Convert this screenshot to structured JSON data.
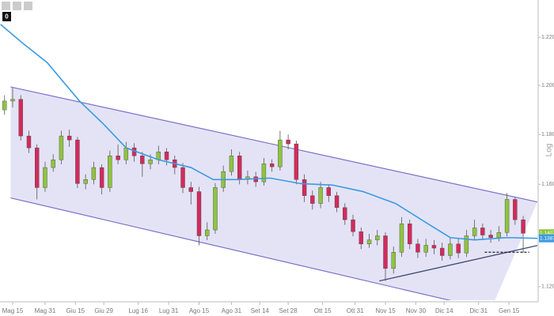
{
  "toolbar": {
    "badge": "0"
  },
  "chart_data": {
    "type": "candlestick",
    "y_axis_label": "Log",
    "log_scale": true,
    "xlim": [
      -6.25,
      259.4
    ],
    "ylim": [
      1.1148,
      1.2357
    ],
    "xticks": [
      {
        "value": 0,
        "label": "Mag 15"
      },
      {
        "value": 16,
        "label": "Mag 31"
      },
      {
        "value": 31,
        "label": "Giu 15"
      },
      {
        "value": 45,
        "label": "Giu 29"
      },
      {
        "value": 62,
        "label": "Lug 16"
      },
      {
        "value": 77,
        "label": "Lug 31"
      },
      {
        "value": 92,
        "label": "Ago 15"
      },
      {
        "value": 108,
        "label": "Ago 31"
      },
      {
        "value": 122,
        "label": "Set 14"
      },
      {
        "value": 136,
        "label": "Set 28"
      },
      {
        "value": 153,
        "label": "Ott 15"
      },
      {
        "value": 169,
        "label": "Ott 31"
      },
      {
        "value": 184,
        "label": "Nov 15"
      },
      {
        "value": 199,
        "label": "Nov 30"
      },
      {
        "value": 213,
        "label": "Dic 14"
      },
      {
        "value": 230,
        "label": "Dic 31"
      },
      {
        "value": 245,
        "label": "Gen 15"
      }
    ],
    "yticks": [
      {
        "value": 1.12,
        "label": "1.1200"
      },
      {
        "value": 1.14,
        "label": "1.1400"
      },
      {
        "value": 1.16,
        "label": "1.1600"
      },
      {
        "value": 1.18,
        "label": "1.1800"
      },
      {
        "value": 1.2,
        "label": "1.2000"
      },
      {
        "value": 1.22,
        "label": "1.2200"
      }
    ],
    "up_color": "#8fc43f",
    "down_color": "#d42a5c",
    "x": [
      -4,
      0,
      4,
      8,
      12,
      16,
      20,
      24,
      28,
      32,
      36,
      40,
      44,
      48,
      52,
      56,
      60,
      64,
      68,
      72,
      76,
      80,
      84,
      88,
      92,
      96,
      100,
      104,
      108,
      112,
      116,
      120,
      124,
      128,
      132,
      136,
      140,
      144,
      148,
      152,
      156,
      160,
      164,
      168,
      172,
      176,
      180,
      184,
      188,
      192,
      196,
      200,
      204,
      208,
      212,
      216,
      220,
      224,
      228,
      232,
      236,
      240,
      244,
      248,
      252
    ],
    "open": [
      1.19,
      1.1936,
      1.1943,
      1.1794,
      1.1746,
      1.1587,
      1.1667,
      1.1698,
      1.1794,
      1.1778,
      1.1603,
      1.1619,
      1.1667,
      1.1587,
      1.1714,
      1.1698,
      1.1746,
      1.1714,
      1.1682,
      1.1698,
      1.173,
      1.1698,
      1.1667,
      1.1587,
      1.1571,
      1.1397,
      1.142,
      1.1587,
      1.1651,
      1.1714,
      1.1619,
      1.163,
      1.161,
      1.1682,
      1.167,
      1.1778,
      1.1762,
      1.1619,
      1.1555,
      1.1524,
      1.1587,
      1.1555,
      1.1508,
      1.146,
      1.1413,
      1.1365,
      1.1381,
      1.1397,
      1.127,
      1.1333,
      1.1444,
      1.1365,
      1.1333,
      1.136,
      1.1349,
      1.132,
      1.1365,
      1.133,
      1.1397,
      1.1428,
      1.14,
      1.139,
      1.141,
      1.154,
      1.146
    ],
    "high": [
      1.196,
      1.199,
      1.196,
      1.1815,
      1.176,
      1.169,
      1.172,
      1.1815,
      1.182,
      1.179,
      1.164,
      1.169,
      1.168,
      1.1735,
      1.176,
      1.177,
      1.1765,
      1.173,
      1.172,
      1.1755,
      1.1745,
      1.1715,
      1.1685,
      1.161,
      1.159,
      1.145,
      1.1605,
      1.1675,
      1.174,
      1.173,
      1.1655,
      1.165,
      1.1705,
      1.17,
      1.1815,
      1.18,
      1.1775,
      1.164,
      1.1575,
      1.161,
      1.16,
      1.157,
      1.1525,
      1.148,
      1.143,
      1.1405,
      1.142,
      1.141,
      1.1355,
      1.147,
      1.146,
      1.1385,
      1.1385,
      1.138,
      1.137,
      1.139,
      1.1385,
      1.142,
      1.146,
      1.1445,
      1.142,
      1.1435,
      1.1565,
      1.155,
      1.1475
    ],
    "low": [
      1.188,
      1.191,
      1.1775,
      1.1725,
      1.154,
      1.157,
      1.165,
      1.168,
      1.175,
      1.1585,
      1.158,
      1.16,
      1.156,
      1.157,
      1.168,
      1.168,
      1.169,
      1.163,
      1.166,
      1.168,
      1.1675,
      1.164,
      1.1565,
      1.152,
      1.136,
      1.138,
      1.1405,
      1.157,
      1.1635,
      1.16,
      1.16,
      1.159,
      1.1595,
      1.165,
      1.1655,
      1.174,
      1.16,
      1.153,
      1.15,
      1.1505,
      1.153,
      1.149,
      1.144,
      1.1395,
      1.1345,
      1.135,
      1.136,
      1.1222,
      1.125,
      1.1315,
      1.1345,
      1.131,
      1.1315,
      1.1325,
      1.13,
      1.1305,
      1.131,
      1.1315,
      1.138,
      1.138,
      1.137,
      1.1375,
      1.1395,
      1.144,
      1.133
    ],
    "close": [
      1.1936,
      1.1943,
      1.1794,
      1.1746,
      1.1587,
      1.1667,
      1.1698,
      1.1794,
      1.1778,
      1.1603,
      1.1619,
      1.1667,
      1.1587,
      1.1714,
      1.1698,
      1.1746,
      1.1714,
      1.1682,
      1.1698,
      1.173,
      1.1698,
      1.1667,
      1.1587,
      1.1571,
      1.1397,
      1.142,
      1.1587,
      1.1651,
      1.1714,
      1.1619,
      1.163,
      1.161,
      1.1682,
      1.167,
      1.1778,
      1.1762,
      1.1619,
      1.1555,
      1.1524,
      1.1587,
      1.1555,
      1.1508,
      1.146,
      1.1413,
      1.1365,
      1.1381,
      1.1397,
      1.127,
      1.1333,
      1.1444,
      1.1365,
      1.1333,
      1.136,
      1.1349,
      1.132,
      1.1365,
      1.133,
      1.1397,
      1.1428,
      1.14,
      1.139,
      1.141,
      1.154,
      1.146,
      1.1407
    ],
    "moving_average": {
      "color": "#3a9be0",
      "x": [
        -6,
        5,
        17,
        33,
        45,
        56,
        72,
        88,
        99,
        111,
        127,
        142,
        158,
        173,
        189,
        205,
        216,
        228,
        244,
        259
      ],
      "values": [
        1.2254,
        1.2175,
        1.2095,
        1.1936,
        1.1841,
        1.1746,
        1.1698,
        1.1667,
        1.1619,
        1.1619,
        1.1625,
        1.1603,
        1.1597,
        1.1571,
        1.1524,
        1.1444,
        1.139,
        1.1381,
        1.139,
        1.1387
      ]
    },
    "channel": {
      "color": "#7a72c8",
      "fill": "#e4e3f6",
      "upper": {
        "x": [
          -1,
          259
        ],
        "values": [
          1.1994,
          1.153
        ]
      },
      "lower": {
        "x": [
          -1,
          236
        ],
        "values": [
          1.1546,
          1.1111
        ]
      }
    },
    "trend_line": {
      "color": "#3f4a7a",
      "x": [
        181,
        259
      ],
      "values": [
        1.1222,
        1.1359
      ]
    },
    "support_line": {
      "color": "#222222",
      "x": [
        233,
        255
      ],
      "values": [
        1.1333,
        1.1333
      ]
    },
    "price_tags": [
      {
        "value": 1.1407,
        "color": "#8fc43f"
      },
      {
        "value": 1.1387,
        "color": "#3a9be0"
      }
    ]
  }
}
